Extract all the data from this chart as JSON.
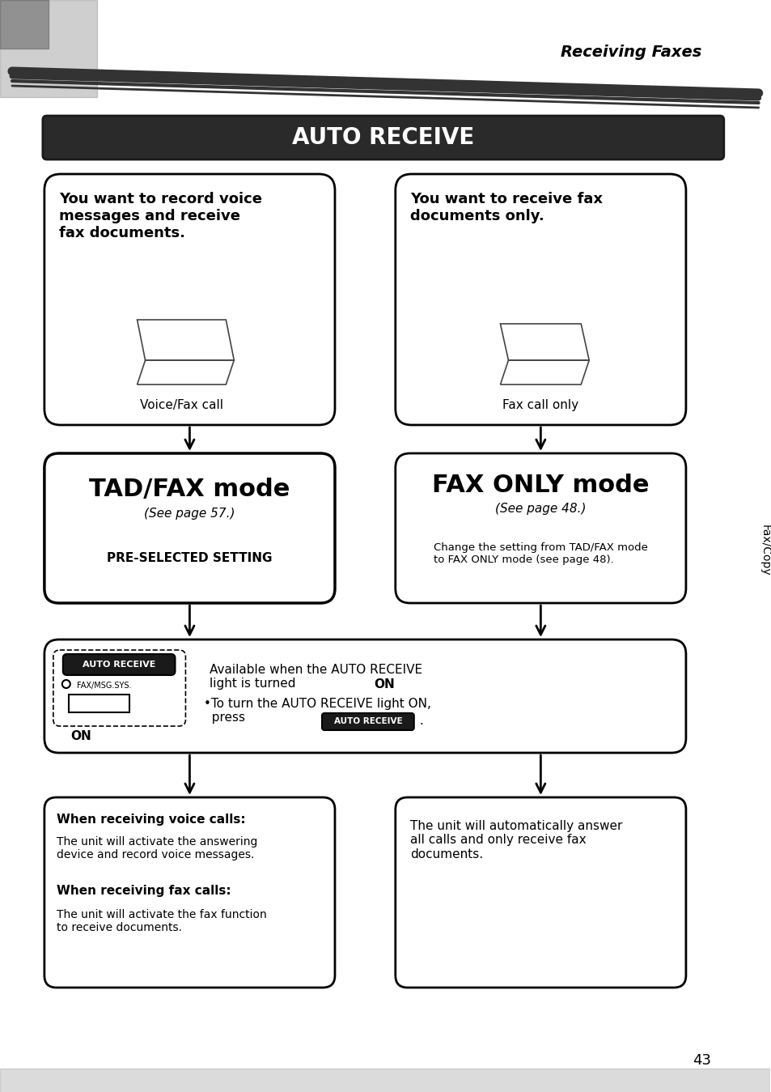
{
  "page_header": "Receiving Faxes",
  "banner_title": "AUTO RECEIVE",
  "top_left_box_text": "You want to record voice\nmessages and receive\nfax documents.",
  "top_right_box_text": "You want to receive fax\ndocuments only.",
  "voice_fax_label": "Voice/Fax call",
  "fax_call_label": "Fax call only",
  "tad_fax_title": "TAD/FAX mode",
  "tad_fax_sub": "(See page 57.)",
  "tad_fax_note": "PRE-SELECTED SETTING",
  "fax_only_title": "FAX ONLY mode",
  "fax_only_sub": "(See page 48.)",
  "fax_only_note": "Change the setting from TAD/FAX mode\nto FAX ONLY mode (see page 48).",
  "auto_receive_btn": "AUTO RECEIVE",
  "fax_msg_sys": "FAX/MSG.SYS.",
  "on_label": "ON",
  "middle_right_text": "Available when the AUTO RECEIVE\nlight is turned ON.\n•To turn the AUTO RECEIVE light ON,\n  press  AUTO RECEIVE  .",
  "bottom_left_title1": "When receiving voice calls:",
  "bottom_left_body1": "The unit will activate the answering\ndevice and record voice messages.",
  "bottom_left_title2": "When receiving fax calls:",
  "bottom_left_body2": "The unit will activate the fax function\nto receive documents.",
  "bottom_right_text": "The unit will automatically answer\nall calls and only receive fax\ndocuments.",
  "side_label": "Fax/Copy",
  "page_number": "43",
  "bg_color": "#ffffff",
  "text_color": "#000000",
  "banner_bg": "#404040",
  "banner_text_color": "#ffffff",
  "box_border_color": "#000000",
  "arrow_color": "#000000"
}
